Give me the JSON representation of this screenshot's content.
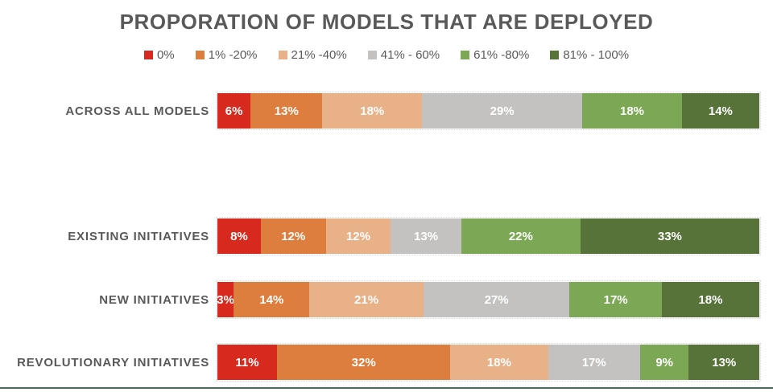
{
  "chart_data": {
    "type": "bar",
    "orientation": "horizontal-stacked",
    "title": "PROPORATION OF MODELS THAT ARE DEPLOYED",
    "legend_position": "top",
    "grid": false,
    "value_suffix": "%",
    "categories": [
      "ACROSS ALL MODELS",
      "EXISTING INITIATIVES",
      "NEW INITIATIVES",
      "REVOLUTIONARY INITIATIVES"
    ],
    "series": [
      {
        "name": "0%",
        "color": "#d7291e",
        "values": [
          6,
          8,
          3,
          11
        ]
      },
      {
        "name": "1% -20%",
        "color": "#de7e3e",
        "values": [
          13,
          12,
          14,
          32
        ]
      },
      {
        "name": "21% -40%",
        "color": "#e9b188",
        "values": [
          18,
          12,
          21,
          18
        ]
      },
      {
        "name": "41% - 60%",
        "color": "#c3c2c1",
        "values": [
          29,
          13,
          27,
          17
        ]
      },
      {
        "name": "61% -80%",
        "color": "#7ca855",
        "values": [
          18,
          22,
          17,
          9
        ]
      },
      {
        "name": "81% - 100%",
        "color": "#587339",
        "values": [
          14,
          33,
          18,
          13
        ]
      }
    ]
  },
  "colors": {
    "title_text": "#595959",
    "label_text": "#595959",
    "value_text": "#ffffff",
    "bottom_rule": "#4d6b58"
  }
}
